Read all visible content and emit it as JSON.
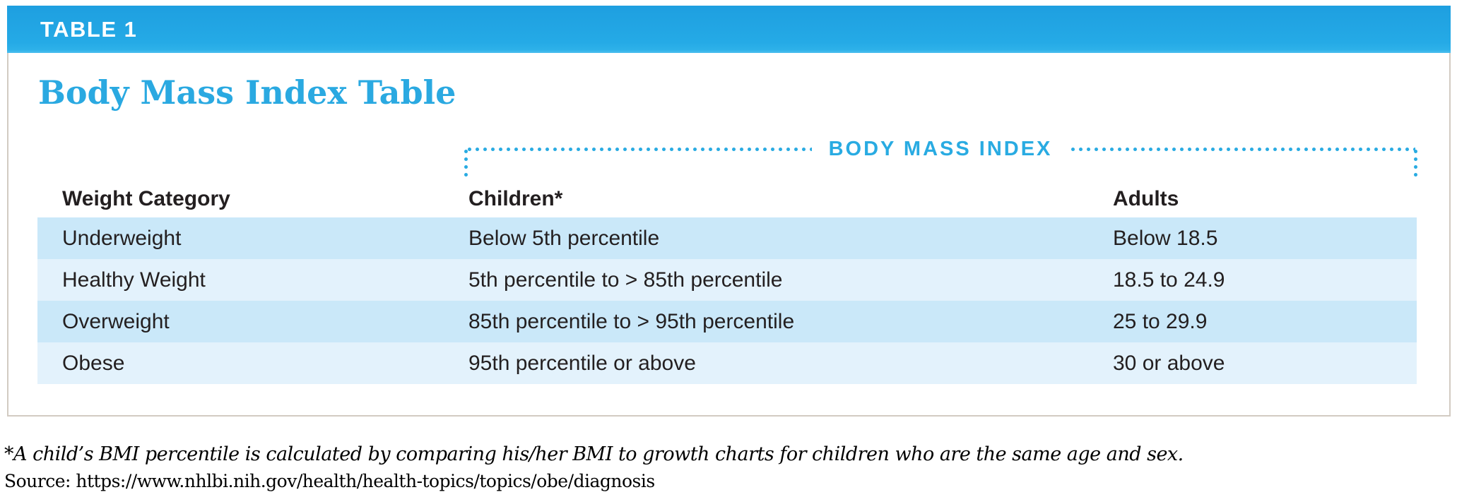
{
  "header": {
    "tag": "TABLE 1"
  },
  "title": "Body Mass Index Table",
  "bmi_band": {
    "label": "BODY MASS INDEX"
  },
  "table": {
    "columns": [
      "Weight Category",
      "Children*",
      "Adults"
    ],
    "rows": [
      {
        "category": "Underweight",
        "children": "Below 5th percentile",
        "adults": "Below 18.5"
      },
      {
        "category": "Healthy Weight",
        "children": "5th percentile to > 85th percentile",
        "adults": "18.5 to 24.9"
      },
      {
        "category": "Overweight",
        "children": "85th percentile to > 95th percentile",
        "adults": "25 to 29.9"
      },
      {
        "category": "Obese",
        "children": "95th percentile or above",
        "adults": "30 or above"
      }
    ]
  },
  "footnotes": {
    "asterisk": "*A child’s BMI percentile is calculated by comparing his/her BMI to growth charts for children who are the same age and sex.",
    "source": "Source: https://www.nhlbi.nih.gov/health/health-topics/topics/obe/diagnosis"
  },
  "colors": {
    "accent_blue": "#29abe2",
    "bar_gradient_top": "#1e9fe0",
    "bar_gradient_bottom": "#2db1e9",
    "row_dark": "#cae8f9",
    "row_light": "#e3f2fc",
    "card_border": "#d2cbc2",
    "text_dark": "#231f20"
  }
}
